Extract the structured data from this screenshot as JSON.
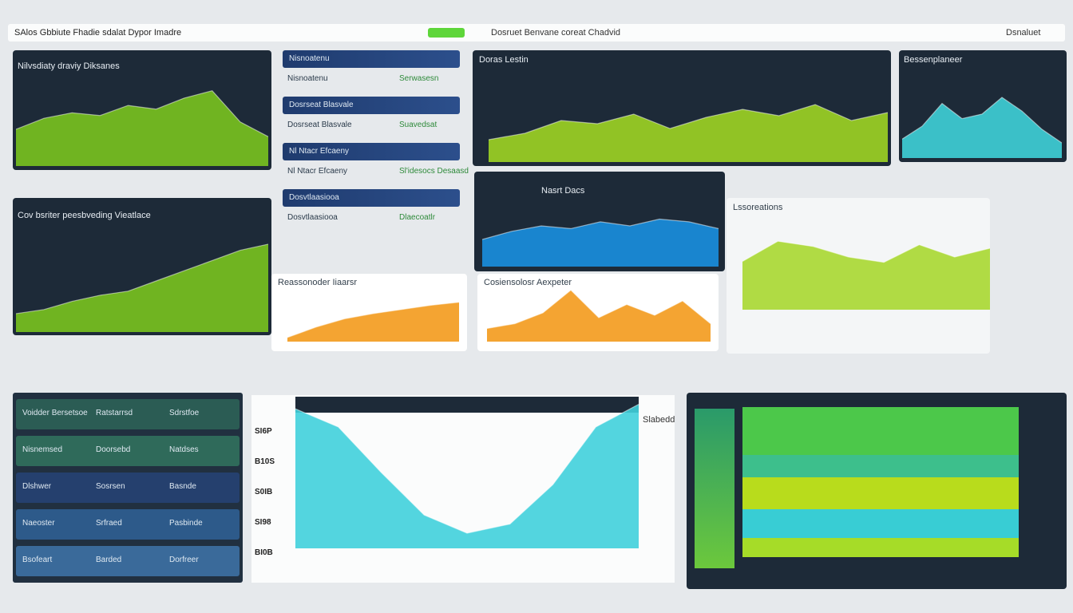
{
  "header": {
    "title": "SAlos Gbbiute Fhadie sdalat Dypor Imadre",
    "center": "Dosruet Benvane coreat Chadvid",
    "right": "Dsnaluet"
  },
  "charts": [
    {
      "title": "Nilvsdiaty draviy Diksanes",
      "color": "#7ac31f",
      "ylim": [
        0,
        100
      ],
      "values": [
        40,
        52,
        58,
        55,
        66,
        62,
        74,
        82,
        48,
        32
      ]
    },
    {
      "title": "Cov bsriter peesbveding Vieatlace",
      "color": "#7ac31f",
      "ylim": [
        0,
        100
      ],
      "values": [
        18,
        22,
        30,
        36,
        40,
        50,
        60,
        70,
        80,
        86
      ]
    },
    {
      "title": "Doras Lestin",
      "color": "#9ed424",
      "ylim": [
        0,
        100
      ],
      "values": [
        28,
        36,
        52,
        48,
        60,
        42,
        56,
        66,
        58,
        72,
        52,
        62
      ]
    },
    {
      "title": "Nasrt Dacs",
      "color": "#1a8fe0",
      "ylim": [
        0,
        100
      ],
      "values": [
        40,
        52,
        60,
        56,
        66,
        60,
        70,
        66,
        56
      ]
    },
    {
      "title": "Bessenplaneer",
      "color": "#3fd0d8",
      "ylim": [
        0,
        100
      ],
      "values": [
        25,
        42,
        72,
        52,
        58,
        80,
        62,
        38,
        20
      ]
    },
    {
      "title": "Lssoreations",
      "color": "#a8d830",
      "ylim": [
        0,
        100
      ],
      "values": [
        55,
        78,
        72,
        60,
        54,
        74,
        60,
        70
      ]
    },
    {
      "title": "Reassonoder Iiaarsr",
      "color": "#f39a1c",
      "ylim": [
        0,
        100
      ],
      "values": [
        8,
        28,
        44,
        54,
        62,
        70,
        76
      ]
    },
    {
      "title": "Cosiensolosr Aexpeter",
      "color": "#f39a1c",
      "ylim": [
        0,
        100
      ],
      "values": [
        22,
        30,
        48,
        86,
        40,
        62,
        44,
        68,
        30
      ]
    },
    {
      "title": "Slabedd",
      "color": "#40d0dc",
      "ylim": [
        0,
        100
      ],
      "values": [
        92,
        80,
        50,
        22,
        10,
        16,
        42,
        80,
        95
      ]
    }
  ],
  "list": {
    "items": [
      [
        "Nisnoatenu",
        "Serwasesn"
      ],
      [
        "Dosrseat Blasvale",
        "Suavedsat"
      ],
      [
        "Nl Ntacr Efcaeny",
        "Sl'idesocs Desaasd"
      ],
      [
        "Dosvtlaasiooa",
        "Dlaecoatlr"
      ]
    ]
  },
  "table": {
    "rows": [
      [
        "Voidder Bersetsoe",
        "Ratstarrsd",
        "Sdrstfoe"
      ],
      [
        "Nisnemsed",
        "Doorsebd",
        "Natdses"
      ],
      [
        "Dlshwer",
        "Sosrsen",
        "Basnde"
      ],
      [
        "Naeoster",
        "Srfraed",
        "Pasbinde"
      ],
      [
        "Bsofeart",
        "Barded",
        "Dorfreer"
      ]
    ]
  },
  "side": {
    "labels": [
      "SI6P",
      "B10S",
      "S0IB",
      "SI98",
      "BI0B"
    ]
  }
}
